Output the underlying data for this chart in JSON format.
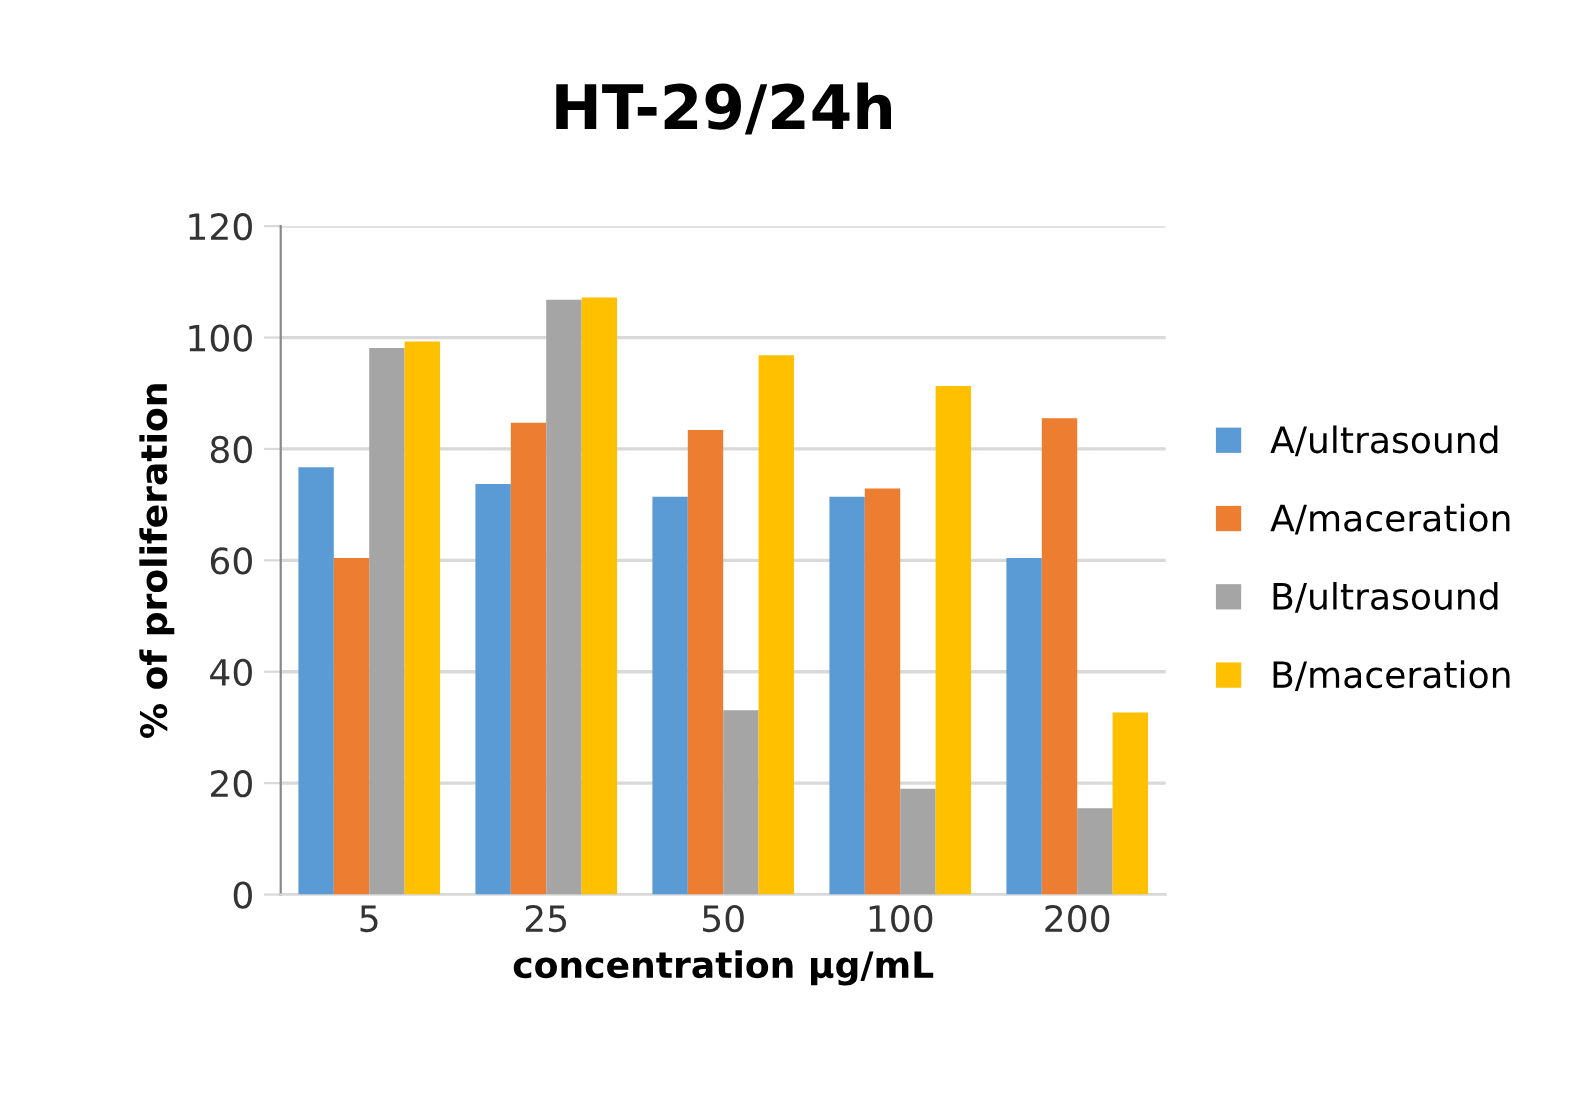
{
  "chart_data": {
    "type": "bar",
    "title": "HT-29/24h",
    "xlabel": "concentration µg/mL",
    "ylabel": "% of proliferation",
    "categories": [
      "5",
      "25",
      "50",
      "100",
      "200"
    ],
    "series": [
      {
        "name": "A/ultrasound",
        "color": "#5b9bd5",
        "values": [
          76.7,
          73.7,
          71.4,
          71.4,
          60.4
        ]
      },
      {
        "name": "A/maceration",
        "color": "#ed7d31",
        "values": [
          60.4,
          84.7,
          83.4,
          72.9,
          85.5
        ]
      },
      {
        "name": "B/ultrasound",
        "color": "#a5a5a5",
        "values": [
          98.1,
          106.8,
          33.1,
          19.0,
          15.5
        ]
      },
      {
        "name": "B/maceration",
        "color": "#ffc000",
        "values": [
          99.3,
          107.2,
          96.8,
          91.3,
          32.7
        ]
      }
    ],
    "ylim": [
      0,
      120
    ],
    "yticks": [
      0,
      20,
      40,
      60,
      80,
      100,
      120
    ],
    "grid": "y",
    "legend": "right"
  }
}
